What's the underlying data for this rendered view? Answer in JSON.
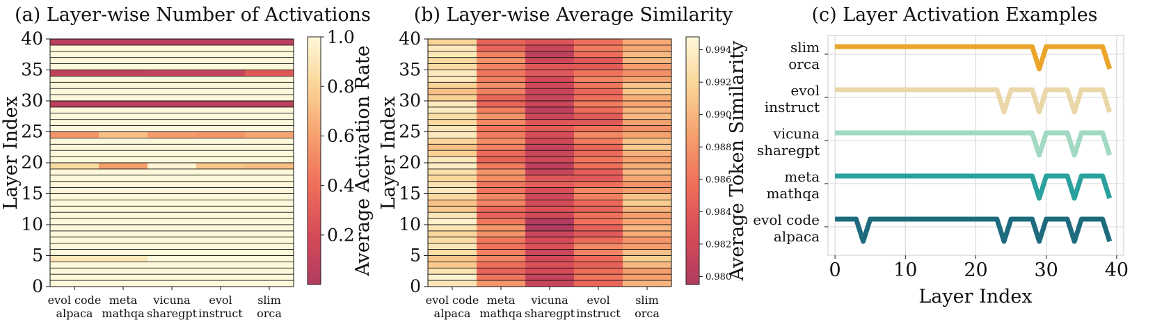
{
  "chart_data": [
    {
      "type": "heatmap",
      "title": "(a) Layer-wise Number of Activations",
      "ylabel": "Layer Index",
      "colorbar_label": "Average Activation Rate",
      "colorbar_ticks": [
        "0.2",
        "0.4",
        "0.6",
        "0.8",
        "1.0"
      ],
      "colorbar_range": [
        0.0,
        1.0
      ],
      "categories": [
        "evol code\nalpaca",
        "meta\nmathqa",
        "vicuna\nsharegpt",
        "evol\ninstruct",
        "slim\norca"
      ],
      "y_ticks": [
        "0",
        "5",
        "10",
        "15",
        "20",
        "25",
        "30",
        "35",
        "40"
      ],
      "ylim": [
        0,
        40
      ],
      "default_value": 1.0,
      "cells": [
        {
          "layer": 39,
          "values": [
            0.05,
            0.05,
            0.05,
            0.05,
            0.05
          ]
        },
        {
          "layer": 34,
          "values": [
            0.08,
            0.08,
            0.1,
            0.1,
            0.28
          ]
        },
        {
          "layer": 29,
          "values": [
            0.06,
            0.06,
            0.06,
            0.06,
            0.06
          ]
        },
        {
          "layer": 24,
          "values": [
            0.55,
            0.72,
            0.58,
            0.55,
            0.62
          ]
        },
        {
          "layer": 19,
          "values": [
            0.84,
            0.6,
            0.98,
            0.75,
            0.72
          ]
        },
        {
          "layer": 4,
          "values": [
            0.9,
            0.9,
            1.0,
            1.0,
            1.0
          ]
        }
      ]
    },
    {
      "type": "heatmap",
      "title": "(b) Layer-wise Average Similarity",
      "ylabel": "Layer Index",
      "colorbar_label": "Average Token Similarity",
      "colorbar_ticks": [
        "0.980",
        "0.982",
        "0.984",
        "0.986",
        "0.988",
        "0.990",
        "0.992",
        "0.994"
      ],
      "colorbar_range": [
        0.9795,
        0.9948
      ],
      "categories": [
        "evol code\nalpaca",
        "meta\nmathqa",
        "vicuna\nsharegpt",
        "evol\ninstruct",
        "slim\norca"
      ],
      "y_ticks": [
        "0",
        "5",
        "10",
        "15",
        "20",
        "25",
        "30",
        "35",
        "40"
      ],
      "ylim": [
        0,
        40
      ],
      "column_base": [
        0.9925,
        0.9865,
        0.9825,
        0.9855,
        0.9895
      ]
    },
    {
      "type": "line",
      "title": "(c) Layer Activation Examples",
      "xlabel": "Layer Index",
      "x_ticks": [
        0,
        10,
        20,
        30,
        40
      ],
      "xlim": [
        -1,
        41
      ],
      "series": [
        {
          "name": "slim\norca",
          "color": "#eaa52a",
          "dips": [
            29,
            39
          ]
        },
        {
          "name": "evol\ninstruct",
          "color": "#ead7a8",
          "dips": [
            24,
            29,
            34,
            39
          ]
        },
        {
          "name": "vicuna\nsharegpt",
          "color": "#a2d9c3",
          "dips": [
            29,
            34,
            39
          ]
        },
        {
          "name": "meta\nmathqa",
          "color": "#2aa19d",
          "dips": [
            29,
            34,
            39
          ]
        },
        {
          "name": "evol code\nalpaca",
          "color": "#1e6b7d",
          "dips": [
            4,
            24,
            29,
            34,
            39
          ]
        }
      ]
    }
  ]
}
